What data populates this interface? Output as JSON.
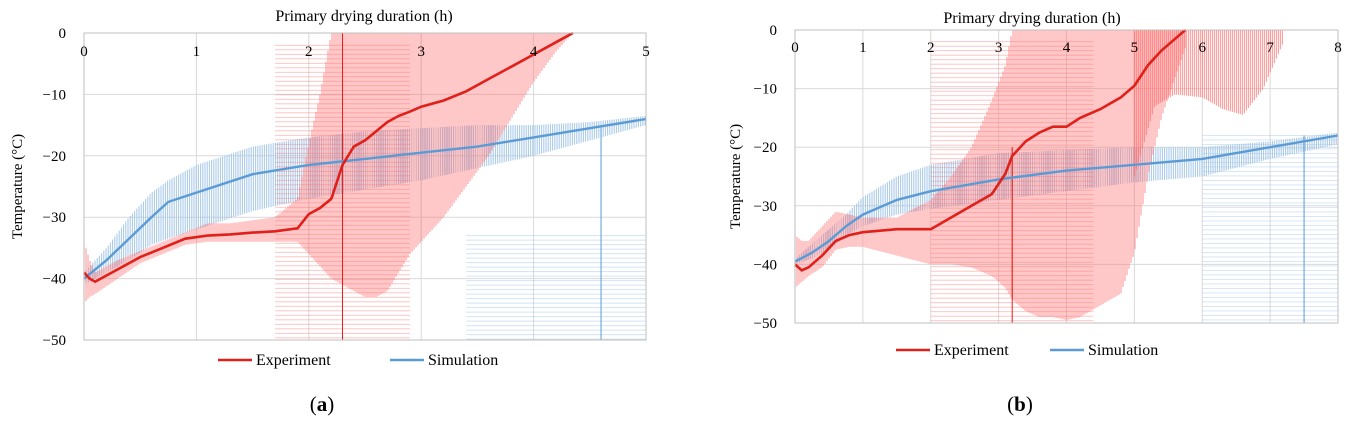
{
  "colors": {
    "experiment": "#e0201a",
    "experiment_band": "#ff7070",
    "simulation": "#5b9bd5",
    "simulation_band": "#9dc3e6",
    "grid": "#d9d9d9"
  },
  "captions": {
    "a_letter": "a",
    "b_letter": "b"
  },
  "chart_data": [
    {
      "id": "a",
      "type": "line",
      "title": "Primary drying duration (h)",
      "xlabel": "Primary drying duration (h)",
      "ylabel": "Temperature (°C)",
      "xlim": [
        0,
        5
      ],
      "ylim": [
        -50,
        0
      ],
      "xticks": [
        0,
        1,
        2,
        3,
        4,
        5
      ],
      "yticks": [
        0,
        -10,
        -20,
        -30,
        -40,
        -50
      ],
      "xtick_labels": [
        "0",
        "1",
        "2",
        "3",
        "4",
        "5"
      ],
      "ytick_labels": [
        "0",
        "−10",
        "−20",
        "−30",
        "−40",
        "−50"
      ],
      "legend": [
        "Experiment",
        "Simulation"
      ],
      "legend_position": "bottom",
      "series": [
        {
          "name": "Experiment",
          "x": [
            0,
            0.05,
            0.1,
            0.3,
            0.5,
            0.7,
            0.9,
            1.1,
            1.3,
            1.5,
            1.7,
            1.9,
            2.0,
            2.1,
            2.2,
            2.3,
            2.4,
            2.5,
            2.6,
            2.7,
            2.8,
            2.9,
            3.0,
            3.2,
            3.4,
            3.6,
            3.8,
            4.0,
            4.2,
            4.35
          ],
          "y": [
            -39,
            -40,
            -40.5,
            -38.5,
            -36.5,
            -35,
            -33.5,
            -33,
            -32.8,
            -32.5,
            -32.3,
            -31.8,
            -29.5,
            -28.5,
            -27,
            -21.5,
            -18.5,
            -17.5,
            -16,
            -14.5,
            -13.5,
            -12.8,
            -12,
            -11,
            -9.5,
            -7.5,
            -5.5,
            -3.5,
            -1.5,
            0
          ],
          "band_low": [
            -44,
            -43,
            -42.5,
            -40,
            -37.5,
            -36,
            -34.5,
            -34,
            -34,
            -34,
            -34,
            -34,
            -36,
            -38,
            -40,
            -41,
            -42,
            -43,
            -43,
            -42,
            -39,
            -36,
            -34,
            -30,
            -25,
            -20,
            -14,
            -8,
            -3,
            0
          ],
          "band_high": [
            -34,
            -37,
            -39,
            -37,
            -35.5,
            -34,
            -32.5,
            -31,
            -31,
            -30.5,
            -30,
            -27,
            -18,
            -10,
            0,
            0,
            0,
            0,
            0,
            0,
            0,
            0,
            0,
            0,
            0,
            0,
            0,
            0,
            0,
            0
          ]
        },
        {
          "name": "Simulation",
          "x": [
            0,
            0.2,
            0.4,
            0.6,
            0.75,
            1.0,
            1.5,
            2.0,
            2.5,
            3.0,
            3.5,
            4.0,
            4.5,
            5.0
          ],
          "y": [
            -40,
            -37,
            -33.5,
            -30,
            -27.5,
            -26,
            -23,
            -21.5,
            -20.5,
            -19.5,
            -18.5,
            -17,
            -15.5,
            -14
          ],
          "band_low": [
            -41,
            -39,
            -37,
            -34.5,
            -33.5,
            -32,
            -29,
            -27,
            -25.5,
            -24,
            -22,
            -20,
            -17.5,
            -15
          ],
          "band_high": [
            -39,
            -35,
            -30,
            -26,
            -24,
            -21.5,
            -18.5,
            -17,
            -16,
            -15.5,
            -15,
            -15,
            -14.5,
            -13.5
          ]
        }
      ]
    },
    {
      "id": "b",
      "type": "line",
      "title": "Primary drying duration (h)",
      "xlabel": "Primary drying duration (h)",
      "ylabel": "Temperature (°C)",
      "xlim": [
        0,
        8
      ],
      "ylim": [
        -50,
        0
      ],
      "xticks": [
        0,
        1,
        2,
        3,
        4,
        5,
        6,
        7,
        8
      ],
      "yticks": [
        0,
        -10,
        -20,
        -30,
        -40,
        -50
      ],
      "xtick_labels": [
        "0",
        "1",
        "2",
        "3",
        "4",
        "5",
        "6",
        "7",
        "8"
      ],
      "ytick_labels": [
        "0",
        "−10",
        "−20",
        "−30",
        "−40",
        "−50"
      ],
      "legend": [
        "Experiment",
        "Simulation"
      ],
      "legend_position": "bottom",
      "series": [
        {
          "name": "Experiment",
          "x": [
            0,
            0.1,
            0.2,
            0.4,
            0.6,
            0.8,
            1.0,
            1.5,
            2.0,
            2.3,
            2.6,
            2.9,
            3.1,
            3.2,
            3.4,
            3.6,
            3.8,
            4.0,
            4.2,
            4.5,
            4.8,
            5.0,
            5.2,
            5.4,
            5.6,
            5.75
          ],
          "y": [
            -40,
            -41,
            -40.5,
            -38.5,
            -36,
            -35,
            -34.5,
            -34,
            -34,
            -32,
            -30,
            -28,
            -24.5,
            -21.5,
            -19,
            -17.5,
            -16.5,
            -16.5,
            -15,
            -13.5,
            -11.5,
            -9.5,
            -6,
            -3.5,
            -1.5,
            0
          ],
          "band_low": [
            -44,
            -43,
            -42,
            -40.5,
            -37.5,
            -37,
            -37,
            -38.5,
            -40,
            -40,
            -40.5,
            -42,
            -44,
            -46,
            -48,
            -49,
            -49,
            -49.5,
            -49,
            -47,
            -45,
            -38,
            -25,
            -15,
            -8,
            -3
          ],
          "band_high": [
            -35,
            -36,
            -36,
            -33.5,
            -31,
            -31.5,
            -32,
            -32,
            -29,
            -25,
            -20,
            -12,
            -6,
            0,
            0,
            0,
            0,
            0,
            0,
            0,
            0,
            0,
            0,
            0,
            0,
            0
          ],
          "band_tail": {
            "x": [
              5.0,
              5.3,
              5.6,
              6.0,
              6.3,
              6.6,
              6.9,
              7.2
            ],
            "high": [
              0,
              0,
              0,
              0,
              0,
              0,
              0,
              0
            ],
            "low": [
              -25,
              -13,
              -11,
              -11.5,
              -13.5,
              -14.5,
              -10,
              -2
            ]
          }
        },
        {
          "name": "Simulation",
          "x": [
            0,
            0.25,
            0.5,
            0.75,
            1.0,
            1.5,
            2.0,
            3.0,
            4.0,
            5.0,
            6.0,
            7.0,
            8.0
          ],
          "y": [
            -39.5,
            -38,
            -36,
            -33.5,
            -31.5,
            -29,
            -27.5,
            -25.5,
            -24,
            -23,
            -22,
            -20,
            -18
          ],
          "band_low": [
            -40,
            -39,
            -37.5,
            -35,
            -33.5,
            -31.5,
            -30.5,
            -29,
            -27.5,
            -26,
            -25,
            -22,
            -19.5
          ],
          "band_high": [
            -39,
            -36.5,
            -34,
            -31.5,
            -28.5,
            -25,
            -23,
            -21,
            -20.5,
            -20,
            -20,
            -19,
            -17.5
          ]
        }
      ]
    }
  ]
}
